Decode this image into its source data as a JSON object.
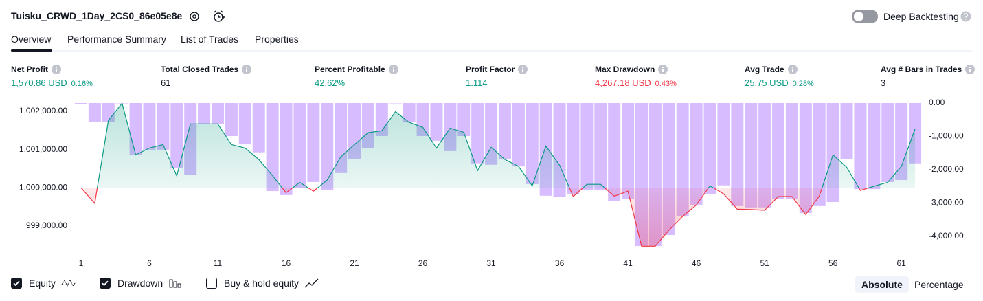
{
  "header": {
    "title": "Tuisku_CRWD_1Day_2CS0_86e05e8e",
    "deep_backtesting": "Deep Backtesting",
    "deep_backtesting_on": false
  },
  "tabs": {
    "items": [
      "Overview",
      "Performance Summary",
      "List of Trades",
      "Properties"
    ],
    "active": 0
  },
  "metrics": [
    {
      "label": "Net Profit",
      "value": "1,570.86 USD",
      "percent": "0.16%",
      "color": "#089981"
    },
    {
      "label": "Total Closed Trades",
      "value": "61",
      "color": "#131722"
    },
    {
      "label": "Percent Profitable",
      "value": "42.62%",
      "color": "#089981"
    },
    {
      "label": "Profit Factor",
      "value": "1.114",
      "color": "#089981"
    },
    {
      "label": "Max Drawdown",
      "value": "4,267.18 USD",
      "percent": "0.43%",
      "color": "#f23645"
    },
    {
      "label": "Avg Trade",
      "value": "25.75 USD",
      "percent": "0.28%",
      "color": "#089981"
    },
    {
      "label": "Avg # Bars in Trades",
      "value": "3",
      "color": "#131722"
    }
  ],
  "chart_data": {
    "type": "combo",
    "x": [
      1,
      2,
      3,
      4,
      5,
      6,
      7,
      8,
      9,
      10,
      11,
      12,
      13,
      14,
      15,
      16,
      17,
      18,
      19,
      20,
      21,
      22,
      23,
      24,
      25,
      26,
      27,
      28,
      29,
      30,
      31,
      32,
      33,
      34,
      35,
      36,
      37,
      38,
      39,
      40,
      41,
      42,
      43,
      44,
      45,
      46,
      47,
      48,
      49,
      50,
      51,
      52,
      53,
      54,
      55,
      56,
      57,
      58,
      59,
      60,
      61,
      62
    ],
    "xlim": [
      0.6,
      62.55
    ],
    "xticks": [
      1,
      6,
      11,
      16,
      21,
      26,
      31,
      36,
      41,
      46,
      51,
      56,
      61
    ],
    "ylim": [
      998440,
      1002215
    ],
    "yticks": [
      {
        "value": 999000,
        "label": "999,000.00"
      },
      {
        "value": 1000000,
        "label": "1,000,000.00"
      },
      {
        "value": 1001000,
        "label": "1,001,000.00"
      },
      {
        "value": 1002000,
        "label": "1,002,000.00"
      }
    ],
    "y2lim": [
      -4330,
      0
    ],
    "y2ticks": [
      {
        "value": 0,
        "label": "0.00"
      },
      {
        "value": -1000,
        "label": "-1,000.00"
      },
      {
        "value": -2000,
        "label": "-2,000.00"
      },
      {
        "value": -3000,
        "label": "-3,000.00"
      },
      {
        "value": -4000,
        "label": "-4,000.00"
      }
    ],
    "series": [
      {
        "name": "Equity",
        "kind": "area",
        "axis": "y",
        "checked": true,
        "color": "#089981",
        "negative_color": "#f23645",
        "values": [
          1000000,
          999590,
          1001760,
          1002210,
          1000860,
          1001040,
          1001130,
          1000310,
          1001670,
          1001670,
          1001670,
          1001130,
          1001040,
          1000740,
          1000320,
          999870,
          1000140,
          999910,
          1000200,
          1000810,
          1001130,
          1001440,
          1001490,
          1001990,
          1001710,
          1001580,
          1001040,
          1001560,
          1001450,
          1000450,
          1001060,
          1000740,
          1000560,
          1000050,
          1001090,
          1000590,
          999770,
          1000090,
          1000090,
          999780,
          999910,
          998470,
          998470,
          998890,
          999250,
          999550,
          1000050,
          999840,
          999440,
          999430,
          999410,
          999770,
          999770,
          999300,
          999780,
          1000860,
          1000540,
          999930,
          1000040,
          1000140,
          1000560,
          1001540
        ]
      },
      {
        "name": "Drawdown",
        "kind": "bar",
        "axis": "y2",
        "checked": true,
        "color": "#c9a7ff",
        "values": [
          -40,
          -560,
          -560,
          0,
          -1550,
          -1400,
          -1400,
          -1940,
          -2160,
          -620,
          -620,
          -990,
          -1240,
          -1480,
          -2640,
          -2760,
          -2550,
          -2370,
          -2600,
          -2100,
          -1690,
          -1340,
          -990,
          0,
          -580,
          -990,
          -1130,
          -1440,
          -990,
          -1810,
          -1850,
          -1690,
          -1900,
          -2430,
          -2780,
          -2820,
          -2720,
          -2620,
          -2620,
          -2930,
          -2880,
          -4290,
          -4290,
          -3960,
          -3400,
          -3050,
          -2720,
          -2470,
          -3090,
          -3130,
          -3130,
          -2880,
          -2880,
          -3300,
          -3090,
          -2970,
          -1690,
          -2580,
          -2580,
          -2370,
          -2310,
          -1810
        ]
      }
    ],
    "extra_legend": [
      {
        "name": "Buy & hold equity",
        "checked": false
      }
    ]
  },
  "modes": {
    "items": [
      "Absolute",
      "Percentage"
    ],
    "active": 0
  }
}
